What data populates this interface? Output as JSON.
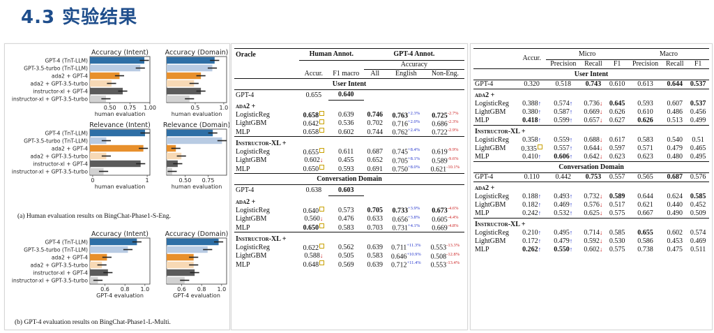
{
  "slide_title": "4.3 实验结果",
  "figure": {
    "y_labels": [
      "GPT-4 (TnT-LLM)",
      "GPT-3.5-turbo (TnT-LLM)",
      "ada2 + GPT-4",
      "ada2 + GPT-3.5-turbo",
      "instructor-xl + GPT-4",
      "instructor-xl + GPT-3.5-turbo"
    ],
    "caption_a": "(a) Human evaluation results on BingChat-Phase1-S-Eng.",
    "caption_b": "(b) GPT-4 evaluation results on BingChat-Phase1-L-Multi."
  },
  "chart_data": [
    {
      "type": "bar",
      "panel": "a",
      "title": "Accuracy (Intent)",
      "xlabel": "human evaluation",
      "x_ticks": [
        "0.50",
        "0.75",
        "1.00"
      ],
      "xlim": [
        0.25,
        1.0
      ],
      "values": [
        0.93,
        0.88,
        0.62,
        0.52,
        0.66,
        0.45
      ]
    },
    {
      "type": "bar",
      "panel": "a",
      "title": "Accuracy (Domain)",
      "xlabel": "human evaluation",
      "x_ticks": [
        "0.5",
        "1.0"
      ],
      "xlim": [
        0.0,
        1.05
      ],
      "values": [
        0.84,
        0.8,
        0.6,
        0.48,
        0.6,
        0.4
      ]
    },
    {
      "type": "bar",
      "panel": "a",
      "title": "Relevance (Intent)",
      "xlabel": "human evaluation",
      "x_ticks": [
        "0",
        "1"
      ],
      "xlim": [
        -0.05,
        1.05
      ],
      "values": [
        0.96,
        0.25,
        0.93,
        0.25,
        0.88,
        0.2
      ]
    },
    {
      "type": "bar",
      "panel": "a",
      "title": "Relevance (Domain)",
      "xlabel": "human evaluation",
      "x_ticks": [
        "0.50",
        "0.75"
      ],
      "xlim": [
        0.3,
        0.95
      ],
      "values": [
        0.8,
        0.9,
        0.4,
        0.46,
        0.42,
        0.36
      ]
    },
    {
      "type": "bar",
      "panel": "b",
      "title": "Accuracy (Intent)",
      "xlabel": "GPT-4 evaluation",
      "x_ticks": [
        "0.6",
        "0.8",
        "1.0"
      ],
      "xlim": [
        0.45,
        1.05
      ],
      "values": [
        0.92,
        0.83,
        0.62,
        0.57,
        0.63,
        0.53
      ]
    },
    {
      "type": "bar",
      "panel": "b",
      "title": "Accuracy (Domain)",
      "xlabel": "GPT-4 evaluation",
      "x_ticks": [
        "0.6",
        "0.8",
        "1.0"
      ],
      "xlim": [
        0.45,
        1.05
      ],
      "values": [
        0.97,
        0.86,
        0.72,
        0.72,
        0.73,
        0.63
      ]
    }
  ],
  "mid_table": {
    "h_oracle": "Oracle",
    "h_human": "Human Annot.",
    "h_gpt4": "GPT-4 Annot.",
    "h_accuracy": "Accuracy",
    "h_accur": "Accur.",
    "h_f1macro": "F1 macro",
    "h_all": "All",
    "h_english": "English",
    "h_noneng": "Non-Eng.",
    "sec1": "User Intent",
    "sec2": "Conversation Domain",
    "g_ada": "ada2 +",
    "g_ins": "Instructor-XL +",
    "ui_gpt4": [
      "GPT-4",
      "0.655",
      "0.640"
    ],
    "ui_ada": [
      [
        "LogisticReg",
        "0.658",
        "0.639",
        "0.746",
        "0.763",
        "+2.3%",
        "0.725",
        "-2.7%"
      ],
      [
        "LightGBM",
        "0.642",
        "0.536",
        "0.702",
        "0.716",
        "+2.0%",
        "0.686",
        "-2.3%"
      ],
      [
        "MLP",
        "0.658",
        "0.602",
        "0.744",
        "0.762",
        "+2.4%",
        "0.722",
        "-2.9%"
      ]
    ],
    "ui_ins": [
      [
        "LogisticReg",
        "0.655",
        "0.611",
        "0.687",
        "0.745",
        "+8.4%",
        "0.619",
        "-9.9%"
      ],
      [
        "LightGBM",
        "0.602",
        "0.455",
        "0.652",
        "0.705",
        "+8.1%",
        "0.589",
        "-9.6%"
      ],
      [
        "MLP",
        "0.650",
        "0.593",
        "0.691",
        "0.750",
        "+8.0%",
        "0.621",
        "-10.1%"
      ]
    ],
    "cd_gpt4": [
      "GPT-4",
      "0.638",
      "0.603"
    ],
    "cd_ada": [
      [
        "LogisticReg",
        "0.640",
        "0.573",
        "0.705",
        "0.733",
        "+3.9%",
        "0.673",
        "-4.6%"
      ],
      [
        "LightGBM",
        "0.560",
        "0.476",
        "0.633",
        "0.656",
        "+3.8%",
        "0.605",
        "-4.4%"
      ],
      [
        "MLP",
        "0.650",
        "0.583",
        "0.703",
        "0.731",
        "+4.1%",
        "0.669",
        "-4.8%"
      ]
    ],
    "cd_ins": [
      [
        "LogisticReg",
        "0.622",
        "0.562",
        "0.639",
        "0.711",
        "+11.3%",
        "0.553",
        "-13.3%"
      ],
      [
        "LightGBM",
        "0.588",
        "0.505",
        "0.583",
        "0.646",
        "+10.9%",
        "0.508",
        "-12.8%"
      ],
      [
        "MLP",
        "0.648",
        "0.569",
        "0.639",
        "0.712",
        "+11.4%",
        "0.553",
        "-13.4%"
      ]
    ]
  },
  "right_table": {
    "h_accur": "Accur.",
    "h_micro": "Micro",
    "h_macro": "Macro",
    "h_precision": "Precision",
    "h_recall": "Recall",
    "h_f1": "F1",
    "sec1": "User Intent",
    "sec2": "Conversation Domain",
    "g_ada": "ada2 +",
    "g_ins": "Instructor-XL +",
    "ui_gpt4": [
      "GPT-4",
      "0.320",
      "0.518",
      "0.743",
      "0.610",
      "0.613",
      "0.644",
      "0.537"
    ],
    "ui_ada": [
      [
        "LogisticReg",
        "0.388",
        "0.574",
        "0.736",
        "0.645",
        "0.593",
        "0.607",
        "0.537"
      ],
      [
        "LightGBM",
        "0.380",
        "0.587",
        "0.669",
        "0.626",
        "0.610",
        "0.486",
        "0.456"
      ],
      [
        "MLP",
        "0.418",
        "0.599",
        "0.657",
        "0.627",
        "0.626",
        "0.513",
        "0.499"
      ]
    ],
    "ui_ins": [
      [
        "LogisticReg",
        "0.358",
        "0.559",
        "0.688",
        "0.617",
        "0.583",
        "0.540",
        "0.51"
      ],
      [
        "LightGBM",
        "0.335",
        "0.557",
        "0.644",
        "0.597",
        "0.571",
        "0.479",
        "0.465"
      ],
      [
        "MLP",
        "0.410",
        "0.606",
        "0.642",
        "0.623",
        "0.623",
        "0.480",
        "0.495"
      ]
    ],
    "cd_gpt4": [
      "GPT-4",
      "0.110",
      "0.442",
      "0.753",
      "0.557",
      "0.565",
      "0.687",
      "0.576"
    ],
    "cd_ada": [
      [
        "LogisticReg",
        "0.188",
        "0.493",
        "0.732",
        "0.589",
        "0.644",
        "0.624",
        "0.585"
      ],
      [
        "LightGBM",
        "0.182",
        "0.469",
        "0.576",
        "0.517",
        "0.621",
        "0.440",
        "0.452"
      ],
      [
        "MLP",
        "0.242",
        "0.532",
        "0.625",
        "0.575",
        "0.667",
        "0.490",
        "0.509"
      ]
    ],
    "cd_ins": [
      [
        "LogisticReg",
        "0.210",
        "0.495",
        "0.714",
        "0.585",
        "0.655",
        "0.602",
        "0.574"
      ],
      [
        "LightGBM",
        "0.172",
        "0.479",
        "0.592",
        "0.530",
        "0.586",
        "0.453",
        "0.469"
      ],
      [
        "MLP",
        "0.262",
        "0.550",
        "0.602",
        "0.575",
        "0.738",
        "0.475",
        "0.511"
      ]
    ]
  }
}
